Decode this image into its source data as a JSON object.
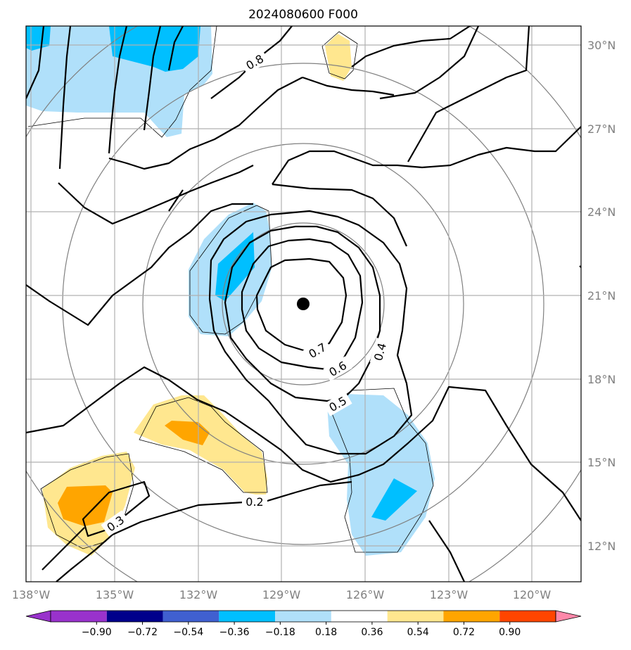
{
  "title": "2024080600 F000",
  "lat_labels": [
    "30°N",
    "27°N",
    "24°N",
    "21°N",
    "18°N",
    "15°N",
    "12°N"
  ],
  "lon_labels": [
    "138°W",
    "135°W",
    "132°W",
    "129°W",
    "126°W",
    "123°W",
    "120°W"
  ],
  "contour_labels": [
    "0.8",
    "0.7",
    "0.6",
    "0.5",
    "0.4",
    "0.3",
    "0.2"
  ],
  "colorbar": {
    "labels": [
      "−0.90",
      "−0.72",
      "−0.54",
      "−0.36",
      "−0.18",
      "0.18",
      "0.36",
      "0.54",
      "0.72",
      "0.90"
    ],
    "colors": [
      "#9932cc",
      "#00008b",
      "#4060d0",
      "#00bfff",
      "#b0e0fa",
      "#ffffff",
      "#ffe78f",
      "#ffa500",
      "#ff4500",
      "#b22222",
      "#ff88aa"
    ]
  },
  "storm_center": {
    "lat": 20.7,
    "lon": -128.3
  },
  "map_extent": {
    "lon": [
      -138,
      -118
    ],
    "lat": [
      10.8,
      30.5
    ]
  }
}
